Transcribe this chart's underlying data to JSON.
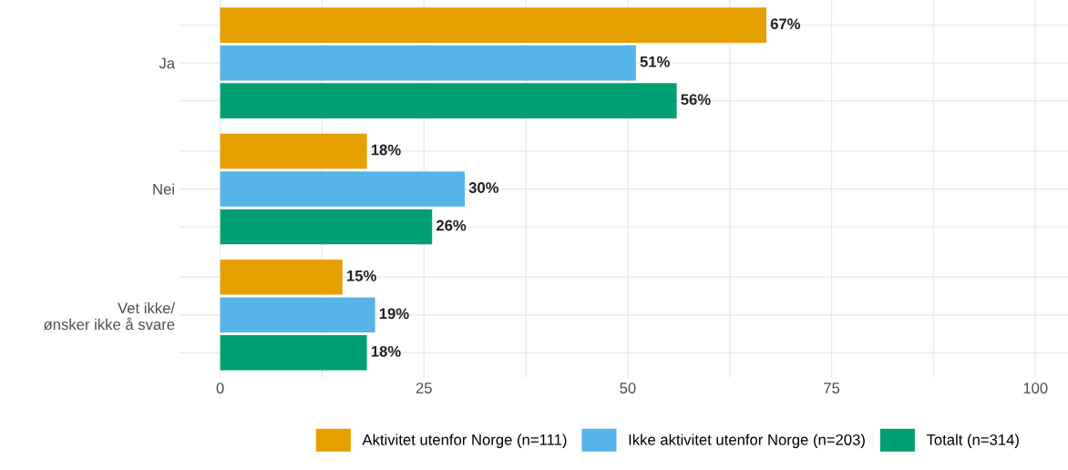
{
  "chart_data": {
    "type": "bar",
    "orientation": "horizontal",
    "categories": [
      "Ja",
      "Nei",
      "Vet ikke/\nønsker ikke å svare"
    ],
    "series": [
      {
        "name": "Aktivitet utenfor Norge (n=111)",
        "color": "#e69f00",
        "values": [
          67,
          18,
          15
        ],
        "value_labels": [
          "67%",
          "18%",
          "15%"
        ]
      },
      {
        "name": "Ikke aktivitet utenfor Norge (n=203)",
        "color": "#56b4e9",
        "values": [
          51,
          30,
          19
        ],
        "value_labels": [
          "51%",
          "30%",
          "19%"
        ]
      },
      {
        "name": "Totalt (n=314)",
        "color": "#009e73",
        "values": [
          56,
          26,
          18
        ],
        "value_labels": [
          "56%",
          "26%",
          "18%"
        ]
      }
    ],
    "xlim": [
      -5,
      104
    ],
    "xticks": [
      0,
      {
        "value": 12.5,
        "label": null
      },
      25,
      {
        "value": 37.5,
        "label": null
      },
      50,
      {
        "value": 62.5,
        "label": null
      },
      75,
      {
        "value": 87.5,
        "label": null
      },
      100
    ],
    "grid": true,
    "legend": "bottom"
  }
}
